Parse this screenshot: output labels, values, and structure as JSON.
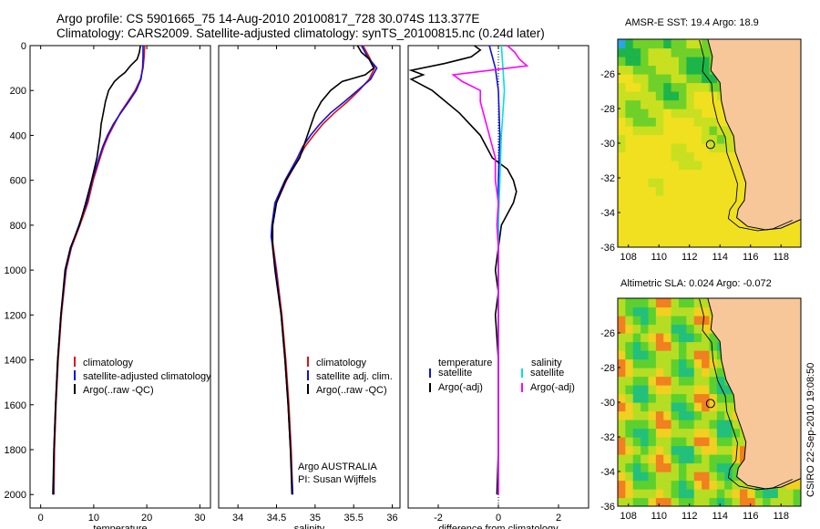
{
  "header": {
    "line1": "Argo profile: CS 5901665_75 14-Aug-2010 20100817_728 30.074S 113.377E",
    "line2": "Climatology: CARS2009. Satellite-adjusted climatology: synTS_20100815.nc (0.24d later)"
  },
  "colors": {
    "climatology": "#e01010",
    "satellite": "#1010e0",
    "argo": "#000000",
    "sat_diff_salinity": "#00e0e0",
    "argo_diff_salinity": "#ff00ff",
    "land": "#f7c79a"
  },
  "chart_data": [
    {
      "type": "line",
      "xlabel": "temperature",
      "ylabel": "",
      "xlim": [
        -2,
        32
      ],
      "ylim": [
        0,
        2060
      ],
      "y_inverted": true,
      "xticks": [
        0,
        10,
        20,
        30
      ],
      "yticks": [
        0,
        200,
        400,
        600,
        800,
        1000,
        1200,
        1400,
        1600,
        1800,
        2000
      ],
      "legend": {
        "placement": "lower-right",
        "entries": [
          "climatology",
          "satellite-adjusted climatology",
          "Argo(..raw -QC)"
        ]
      },
      "series": [
        {
          "name": "climatology",
          "color_key": "climatology",
          "depth": [
            0,
            50,
            100,
            150,
            200,
            250,
            300,
            350,
            400,
            450,
            500,
            600,
            700,
            800,
            900,
            1000,
            1200,
            1400,
            1600,
            1800,
            2000
          ],
          "values": [
            19.6,
            19.5,
            19.3,
            18.8,
            17.8,
            16.4,
            15.0,
            13.9,
            12.8,
            11.9,
            11.2,
            9.9,
            8.9,
            7.4,
            5.8,
            4.8,
            3.9,
            3.3,
            2.9,
            2.6,
            2.5
          ]
        },
        {
          "name": "satellite-adjusted climatology",
          "color_key": "satellite",
          "depth": [
            0,
            50,
            100,
            150,
            200,
            250,
            300,
            350,
            400,
            450,
            500,
            600,
            700,
            800,
            900,
            1000,
            1200,
            1400,
            1600,
            1800,
            2000
          ],
          "values": [
            19.3,
            19.3,
            19.2,
            18.9,
            18.0,
            16.6,
            15.1,
            13.7,
            12.6,
            11.7,
            11.0,
            9.7,
            8.7,
            7.2,
            5.7,
            4.7,
            3.8,
            3.2,
            2.8,
            2.5,
            2.4
          ]
        },
        {
          "name": "Argo(..raw -QC)",
          "color_key": "argo",
          "depth": [
            0,
            30,
            60,
            90,
            120,
            140,
            160,
            200,
            250,
            300,
            350,
            400,
            450,
            500,
            600,
            700,
            800,
            900,
            1000,
            1200,
            1400,
            1600,
            1800,
            2000
          ],
          "values": [
            18.8,
            18.6,
            18.2,
            16.9,
            15.9,
            14.8,
            13.9,
            12.8,
            12.2,
            11.8,
            11.4,
            11.2,
            10.9,
            10.6,
            9.6,
            8.5,
            7.3,
            5.6,
            4.6,
            3.8,
            3.2,
            2.8,
            2.5,
            2.3
          ]
        }
      ]
    },
    {
      "type": "line",
      "xlabel": "salinity",
      "ylabel": "",
      "xlim": [
        33.75,
        36.1
      ],
      "ylim": [
        0,
        2060
      ],
      "y_inverted": true,
      "xticks": [
        34,
        34.5,
        35,
        35.5,
        36
      ],
      "legend": {
        "placement": "lower-right",
        "entries": [
          "climatology",
          "satellite adj. clim.",
          "Argo(..raw -QC)"
        ]
      },
      "annotation": [
        "Argo AUSTRALIA",
        "PI: Susan Wijffels"
      ],
      "series": [
        {
          "name": "climatology",
          "color_key": "climatology",
          "depth": [
            0,
            50,
            100,
            150,
            200,
            250,
            300,
            350,
            400,
            450,
            500,
            600,
            700,
            800,
            850,
            900,
            1000,
            1200,
            1400,
            1600,
            1800,
            2000
          ],
          "values": [
            35.62,
            35.7,
            35.77,
            35.7,
            35.57,
            35.42,
            35.25,
            35.1,
            34.98,
            34.87,
            34.79,
            34.63,
            34.5,
            34.45,
            34.44,
            34.46,
            34.5,
            34.57,
            34.62,
            34.66,
            34.69,
            34.71
          ]
        },
        {
          "name": "satellite adj. clim.",
          "color_key": "satellite",
          "depth": [
            0,
            50,
            100,
            150,
            200,
            250,
            300,
            350,
            400,
            450,
            500,
            600,
            700,
            800,
            850,
            900,
            1000,
            1200,
            1400,
            1600,
            1800,
            2000
          ],
          "values": [
            35.6,
            35.68,
            35.8,
            35.72,
            35.55,
            35.38,
            35.2,
            35.06,
            34.94,
            34.84,
            34.77,
            34.61,
            34.48,
            34.44,
            34.43,
            34.45,
            34.49,
            34.56,
            34.61,
            34.65,
            34.68,
            34.71
          ]
        },
        {
          "name": "Argo(..raw -QC)",
          "color_key": "argo",
          "depth": [
            0,
            30,
            60,
            100,
            130,
            160,
            200,
            250,
            300,
            350,
            400,
            450,
            500,
            600,
            700,
            800,
            900,
            1000,
            1200,
            1400,
            1600,
            1800,
            2000
          ],
          "values": [
            35.55,
            35.6,
            35.7,
            35.76,
            35.65,
            35.35,
            35.2,
            35.08,
            35.0,
            34.95,
            34.9,
            34.85,
            34.8,
            34.62,
            34.5,
            34.45,
            34.45,
            34.48,
            34.56,
            34.61,
            34.65,
            34.68,
            34.7
          ]
        }
      ]
    },
    {
      "type": "line",
      "xlabel": "difference from climatology",
      "ylabel": "",
      "xlim": [
        -3,
        3
      ],
      "ylim": [
        0,
        2060
      ],
      "y_inverted": true,
      "xticks": [
        -2,
        0,
        2
      ],
      "legend": {
        "placement": "lower-center",
        "temperature_header": "temperature",
        "salinity_header": "salinity",
        "entries": [
          "satellite",
          "Argo(-adj)",
          "satellite",
          "Argo(-adj)"
        ]
      },
      "series": [
        {
          "name": "temperature satellite",
          "color_key": "satellite",
          "depth": [
            0,
            100,
            200,
            400,
            600,
            800,
            1000,
            1400,
            2000
          ],
          "values": [
            -0.3,
            -0.1,
            0.0,
            0.05,
            0.0,
            0.0,
            0.0,
            0.0,
            0.0
          ]
        },
        {
          "name": "temperature Argo(-adj)",
          "color_key": "argo",
          "depth": [
            0,
            20,
            50,
            80,
            110,
            130,
            150,
            200,
            300,
            400,
            500,
            550,
            600,
            650,
            700,
            750,
            800,
            900,
            1000,
            1100,
            1200,
            1400,
            1600,
            1800,
            2000
          ],
          "values": [
            -0.8,
            -0.6,
            -0.9,
            -1.8,
            -2.9,
            -2.5,
            -2.9,
            -2.2,
            -1.3,
            -0.6,
            -0.2,
            0.3,
            0.5,
            0.6,
            0.5,
            0.3,
            0.1,
            0.0,
            -0.1,
            0.0,
            -0.1,
            0.0,
            0.0,
            0.0,
            -0.05
          ]
        },
        {
          "name": "salinity satellite",
          "color_key": "sat_diff_salinity",
          "depth": [
            0,
            100,
            200,
            400,
            600,
            800,
            1000,
            1400,
            2000
          ],
          "values": [
            0.1,
            0.15,
            0.2,
            0.1,
            0.05,
            0.0,
            0.0,
            0.0,
            0.0
          ]
        },
        {
          "name": "salinity Argo(-adj)",
          "color_key": "argo_diff_salinity",
          "depth": [
            0,
            30,
            60,
            90,
            130,
            160,
            200,
            250,
            300,
            400,
            500,
            600,
            700,
            800,
            900,
            1000,
            1200,
            1400,
            1600,
            1800,
            2000
          ],
          "values": [
            0.3,
            0.55,
            0.7,
            0.95,
            -1.5,
            -1.2,
            -0.6,
            -0.6,
            -0.5,
            -0.3,
            -0.1,
            -0.1,
            0.0,
            -0.05,
            0.0,
            0.0,
            0.0,
            0.0,
            0.0,
            0.0,
            0.0
          ]
        }
      ]
    },
    {
      "type": "heatmap",
      "title": "AMSR-E SST: 19.4 Argo: 18.9",
      "xticks": [
        108,
        110,
        112,
        114,
        116,
        118
      ],
      "yticks": [
        -26,
        -28,
        -30,
        -32,
        -34,
        -36
      ],
      "xlim": [
        107.3,
        119.3
      ],
      "ylim": [
        -36,
        -24
      ],
      "marker": {
        "lon": 113.377,
        "lat": -30.074
      }
    },
    {
      "type": "heatmap",
      "title": "Altimetric SLA: 0.024 Argo: -0.072",
      "xticks": [
        108,
        110,
        112,
        114,
        116,
        118
      ],
      "yticks": [
        -26,
        -28,
        -30,
        -32,
        -34,
        -36
      ],
      "xlim": [
        107.3,
        119.3
      ],
      "ylim": [
        -36,
        -24
      ],
      "marker": {
        "lon": 113.377,
        "lat": -30.074
      }
    }
  ],
  "side_label": "CSIRO 22-Sep-2010 19:08:50"
}
